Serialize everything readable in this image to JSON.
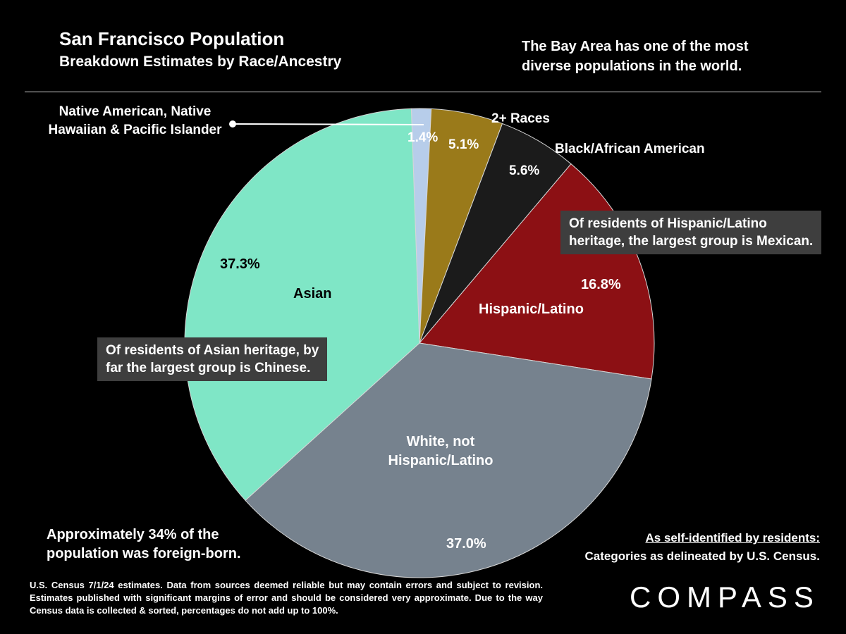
{
  "header": {
    "title": "San Francisco Population",
    "subtitle": "Breakdown Estimates by Race/Ancestry",
    "tagline_line1": "The Bay Area has one of the most",
    "tagline_line2": "diverse populations in the world."
  },
  "chart_data": {
    "type": "pie",
    "title": "San Francisco Population Breakdown Estimates by Race/Ancestry",
    "start_angle_deg": -2,
    "note": "percentages do not add up to 100%",
    "slices": [
      {
        "id": "native",
        "label": "Native American, Native Hawaiian & Pacific Islander",
        "value": 1.4,
        "pct": "1.4%",
        "color": "#b7cdea"
      },
      {
        "id": "two-plus-races",
        "label": "2+ Races",
        "value": 5.1,
        "pct": "5.1%",
        "color": "#9a7a1a"
      },
      {
        "id": "black-african-american",
        "label": "Black/African American",
        "value": 5.6,
        "pct": "5.6%",
        "color": "#1b1b1b"
      },
      {
        "id": "hispanic-latino",
        "label": "Hispanic/Latino",
        "value": 16.8,
        "pct": "16.8%",
        "color": "#8c1014"
      },
      {
        "id": "white-not-hispanic",
        "label": "White, not Hispanic/Latino",
        "value": 37.0,
        "pct": "37.0%",
        "color": "#76828e"
      },
      {
        "id": "asian",
        "label": "Asian",
        "value": 37.3,
        "pct": "37.3%",
        "color": "#7fe6c6"
      }
    ]
  },
  "overlay": {
    "native_line1": "Native American, Native",
    "native_line2": "Hawaiian & Pacific Islander",
    "white_line1": "White, not",
    "white_line2": "Hispanic/Latino"
  },
  "annotations": {
    "hispanic_line1": "Of residents of Hispanic/Latino",
    "hispanic_line2": "heritage, the largest group is Mexican.",
    "asian_line1": "Of residents of Asian heritage, by",
    "asian_line2": "far the largest group is Chinese.",
    "foreign_born_line1": "Approximately 34% of the",
    "foreign_born_line2": "population was foreign-born.",
    "self_identified_title": "As self-identified by residents:",
    "self_identified_sub": "Categories as delineated by U.S. Census."
  },
  "footer": {
    "disclaimer": "U.S. Census 7/1/24 estimates. Data from sources deemed reliable but may contain errors and subject to revision. Estimates published with significant margins of error and should be considered very approximate. Due to the way Census data is collected & sorted, percentages do not add up to 100%.",
    "logo": "COMPASS"
  }
}
